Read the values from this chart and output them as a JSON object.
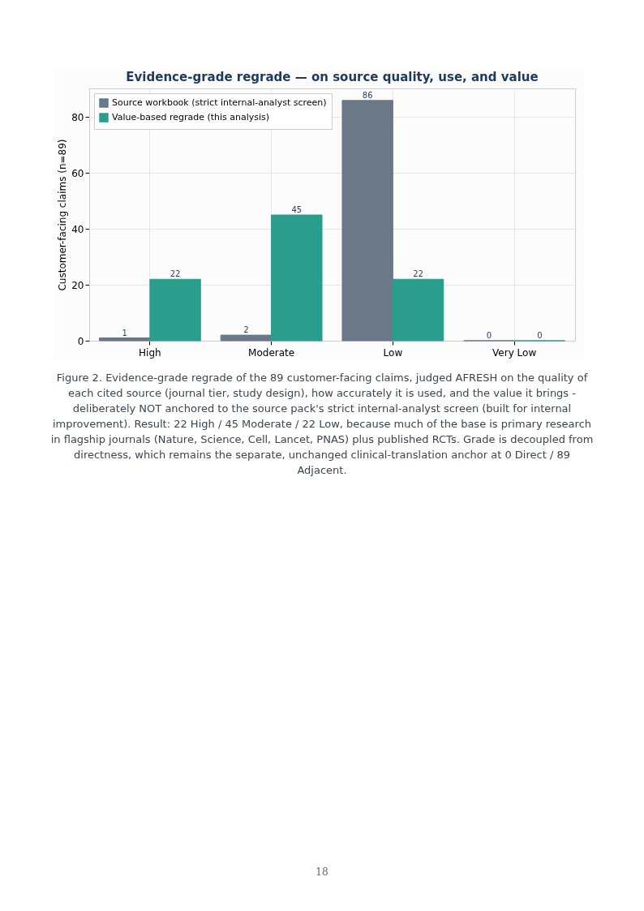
{
  "chart_data": {
    "type": "bar",
    "title": "Evidence-grade regrade — on source quality, use, and value",
    "ylabel": "Customer-facing claims (n=89)",
    "categories": [
      "High",
      "Moderate",
      "Low",
      "Very Low"
    ],
    "series": [
      {
        "name": "Source workbook (strict internal-analyst screen)",
        "color": "#6b7886",
        "values": [
          1,
          2,
          86,
          0
        ]
      },
      {
        "name": "Value-based regrade (this analysis)",
        "color": "#2a9d8c",
        "values": [
          22,
          45,
          22,
          0
        ]
      }
    ],
    "ylim": [
      0,
      90.3
    ],
    "yticks": [
      0,
      20,
      40,
      60,
      80
    ],
    "grid": true,
    "legend": "top left",
    "data_labels": true,
    "annotations": [
      "Figure 2. Evidence-grade regrade of the 89 customer-facing claims, judged AFRESH on the quality of each cited source (journal tier, study design), how accurately it is used, and the value it brings - deliberately NOT anchored to the source pack's strict internal-analyst screen (built for internal improvement). Result: 22 High / 45 Moderate / 22 Low, because much of the base is primary research in flagship journals (Nature, Science, Cell, Lancet, PNAS) plus published RCTs. Grade is decoupled from directness, which remains the separate, unchanged clinical-translation anchor at 0 Direct / 89 Adjacent.",
      "18"
    ]
  }
}
